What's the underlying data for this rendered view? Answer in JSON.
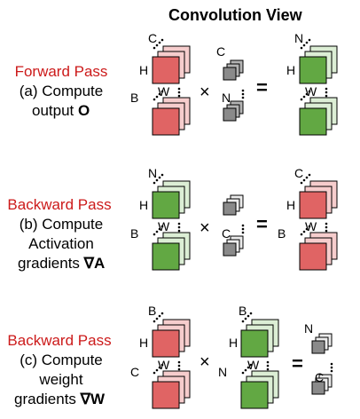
{
  "title": "Convolution View",
  "colors": {
    "red_dark": "#e06464",
    "red_light": "#f6cdcd",
    "green_dark": "#62a843",
    "green_light": "#dceed5",
    "gray_dark": "#8a8a8a",
    "gray_mid": "#b4b4b4",
    "gray_light": "#ececec",
    "pass_red": "#cc1a1a"
  },
  "rows": [
    {
      "pass": "Forward Pass",
      "line1": "(a) Compute",
      "line2": "output",
      "sym": "O",
      "multiply": "×",
      "equals": "=",
      "labels": {
        "a_top": "C",
        "a_left": "H",
        "a_w": "W",
        "a_b": "B",
        "b_top": "C",
        "b_n": "N",
        "r_top": "N",
        "r_left": "H",
        "r_w": "W"
      }
    },
    {
      "pass": "Backward Pass",
      "line1": "(b) Compute",
      "line2": "Activation",
      "line3": "gradients",
      "sym": "∇A",
      "multiply": "×",
      "equals": "=",
      "labels": {
        "a_top": "N",
        "a_left": "H",
        "a_w": "W",
        "a_b": "B",
        "b_c": "C",
        "r_top": "C",
        "r_left": "H",
        "r_w": "W",
        "r_b": "B"
      }
    },
    {
      "pass": "Backward Pass",
      "line1": "(c) Compute",
      "line2": "weight",
      "line3": "gradients",
      "sym": "∇W",
      "multiply": "×",
      "equals": "=",
      "labels": {
        "a_top": "B",
        "a_left": "H",
        "a_w": "W",
        "a_c": "C",
        "b_top": "B",
        "b_left": "H",
        "b_w": "W",
        "b_n": "N",
        "r_n": "N",
        "r_c": "C"
      }
    }
  ]
}
